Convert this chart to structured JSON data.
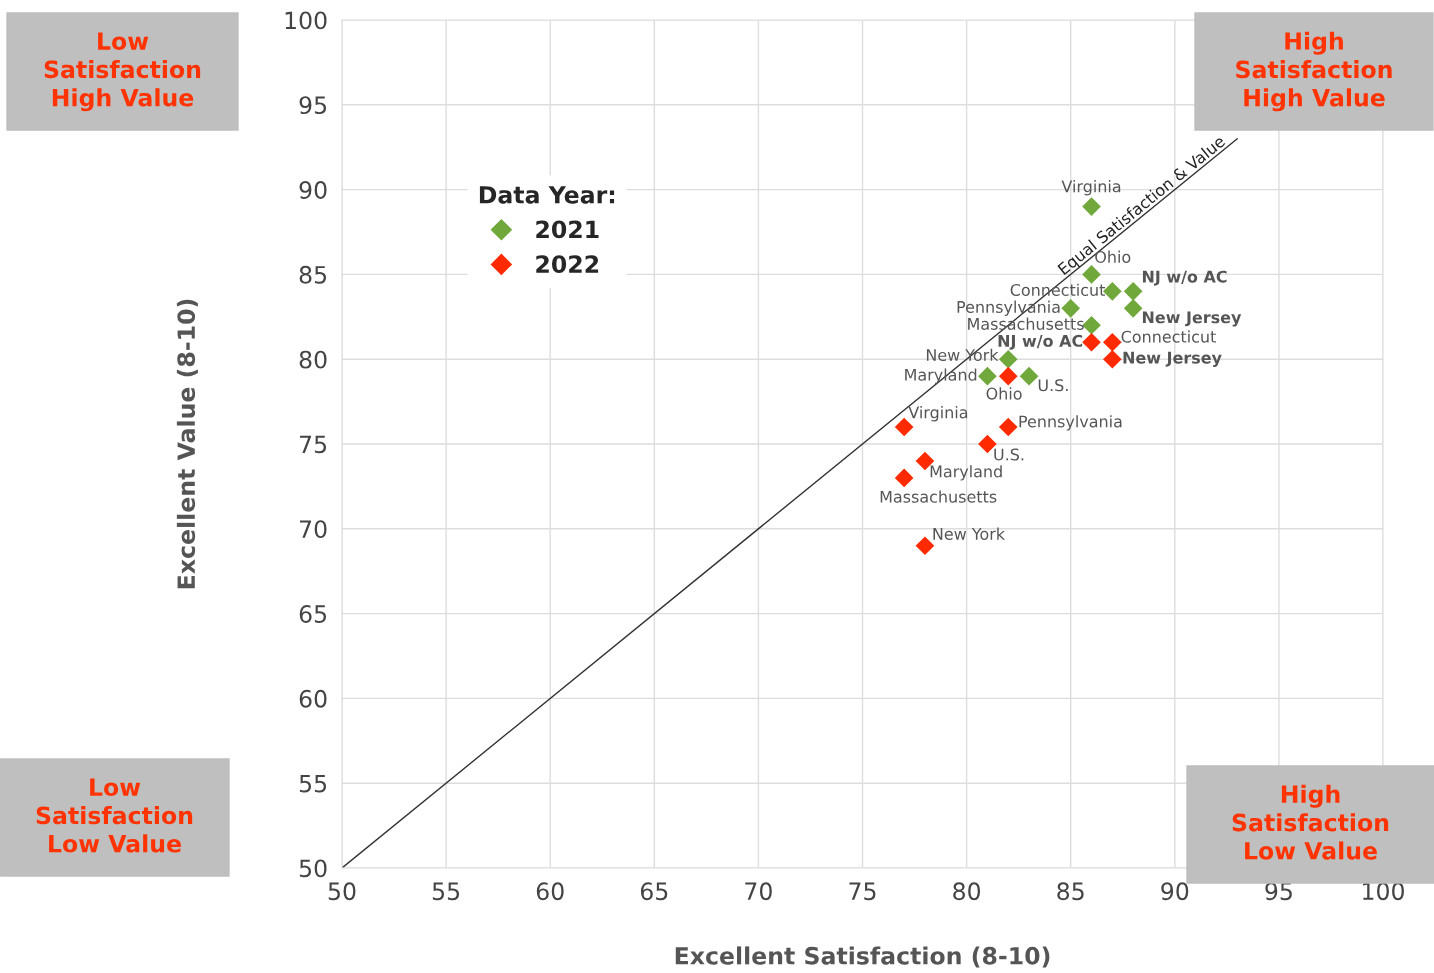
{
  "chart_data": {
    "type": "scatter",
    "xlabel": "Excellent Satisfaction (8-10)",
    "ylabel": "Excellent Value (8-10)",
    "legend_title": "Data Year:",
    "legend": "top left",
    "grid": true,
    "marker": "diamond",
    "xlim": [
      50,
      100
    ],
    "ylim": [
      50,
      100
    ],
    "xticks": [
      50,
      55,
      60,
      65,
      70,
      75,
      80,
      85,
      90,
      95,
      100
    ],
    "yticks": [
      50,
      55,
      60,
      65,
      70,
      75,
      80,
      85,
      90,
      95,
      100
    ],
    "series": [
      {
        "type": "line",
        "name": "Equal Satisfaction & Value",
        "color": "#333333",
        "marker": "none",
        "x": [
          50,
          93
        ],
        "values": [
          50,
          93
        ]
      },
      {
        "name": "2021",
        "color": "#70a83c",
        "x": [
          86,
          86,
          87,
          88,
          88,
          85,
          86,
          82,
          81,
          83
        ],
        "values": [
          89,
          85,
          84,
          84,
          83,
          83,
          82,
          80,
          79,
          79
        ]
      },
      {
        "name": "2022",
        "color": "#ff2a00",
        "x": [
          86,
          87,
          87,
          82,
          77,
          82,
          81,
          78,
          77,
          78
        ],
        "values": [
          81,
          81,
          80,
          79,
          76,
          76,
          75,
          74,
          73,
          69
        ]
      }
    ],
    "annotations": [
      {
        "text": "Virginia",
        "x": 86,
        "y": 89
      },
      {
        "text": "Ohio",
        "x": 86,
        "y": 85
      },
      {
        "text": "Connecticut",
        "x": 87,
        "y": 84
      },
      {
        "text": "NJ w/o AC",
        "x": 88,
        "y": 84
      },
      {
        "text": "New Jersey",
        "x": 88,
        "y": 83
      },
      {
        "text": "Pennsylvania",
        "x": 85,
        "y": 83
      },
      {
        "text": "Massachusetts",
        "x": 86,
        "y": 82
      },
      {
        "text": "New York",
        "x": 82,
        "y": 80
      },
      {
        "text": "Maryland",
        "x": 81,
        "y": 79
      },
      {
        "text": "U.S.",
        "x": 83,
        "y": 79
      },
      {
        "text": "NJ w/o AC",
        "x": 86,
        "y": 81
      },
      {
        "text": "Connecticut",
        "x": 87,
        "y": 81
      },
      {
        "text": "New Jersey",
        "x": 87,
        "y": 80
      },
      {
        "text": "Ohio",
        "x": 82,
        "y": 79
      },
      {
        "text": "Virginia",
        "x": 77,
        "y": 76
      },
      {
        "text": "Pennsylvania",
        "x": 82,
        "y": 76
      },
      {
        "text": "U.S.",
        "x": 81,
        "y": 75
      },
      {
        "text": "Maryland",
        "x": 78,
        "y": 74
      },
      {
        "text": "Massachusetts",
        "x": 77,
        "y": 73
      },
      {
        "text": "New York",
        "x": 78,
        "y": 69
      },
      "Low\nSatisfaction\nHigh Value",
      "High\nSatisfaction\nHigh Value",
      "Low\nSatisfaction\nLow Value",
      "High\nSatisfaction\nLow Value"
    ]
  }
}
